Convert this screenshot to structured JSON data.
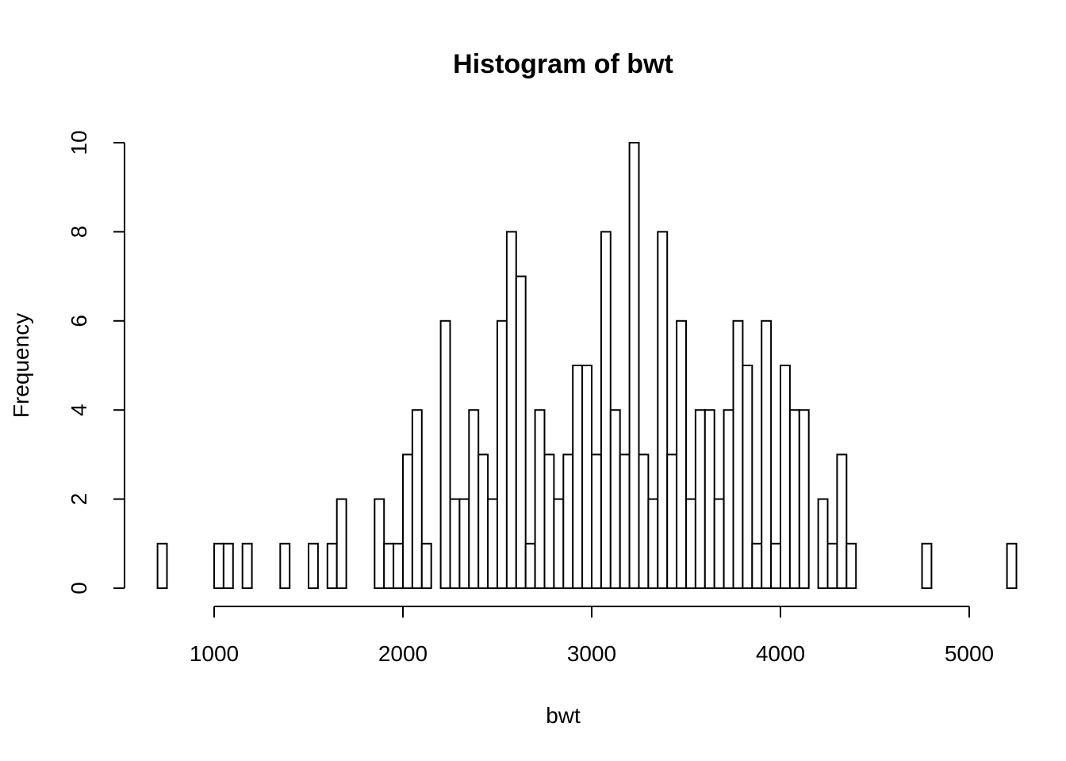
{
  "chart_data": {
    "type": "bar",
    "title": "Histogram of bwt",
    "xlabel": "bwt",
    "ylabel": "Frequency",
    "bin_width": 50,
    "bin_start": 700,
    "xlim": [
      500,
      5000
    ],
    "ylim": [
      0,
      10
    ],
    "xticks": [
      1000,
      2000,
      3000,
      4000,
      5000
    ],
    "yticks": [
      0,
      2,
      4,
      6,
      8,
      10
    ],
    "values": [
      1,
      0,
      0,
      0,
      0,
      0,
      1,
      1,
      0,
      1,
      0,
      0,
      0,
      1,
      0,
      0,
      1,
      0,
      1,
      2,
      0,
      0,
      0,
      2,
      1,
      1,
      3,
      4,
      1,
      0,
      6,
      2,
      2,
      4,
      3,
      2,
      6,
      8,
      7,
      1,
      4,
      3,
      2,
      3,
      5,
      5,
      3,
      8,
      4,
      3,
      10,
      3,
      2,
      8,
      3,
      6,
      2,
      4,
      4,
      2,
      4,
      6,
      5,
      1,
      6,
      1,
      5,
      4,
      4,
      0,
      2,
      1,
      3,
      1,
      0,
      0,
      0,
      0,
      0,
      0,
      0,
      1,
      0,
      0,
      0,
      0,
      0,
      0,
      0,
      0,
      1
    ]
  }
}
